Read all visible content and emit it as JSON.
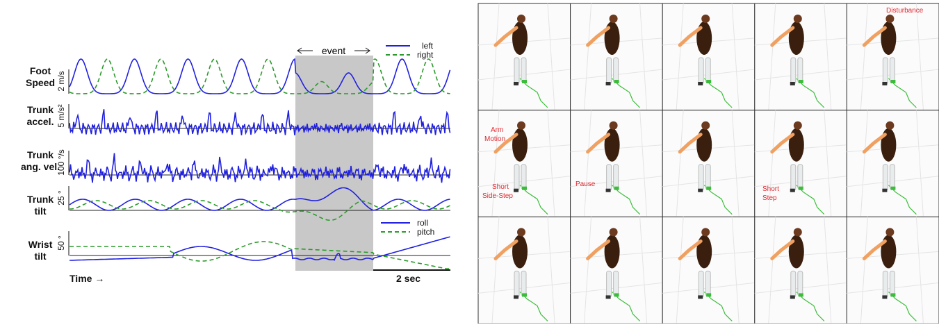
{
  "plot": {
    "rows": [
      {
        "label": [
          "Foot",
          "Speed"
        ],
        "unit": "2 m/s"
      },
      {
        "label": [
          "Trunk",
          "accel."
        ],
        "unit": "5 m/s²"
      },
      {
        "label": [
          "Trunk",
          "ang. vel."
        ],
        "unit": "100 °/s"
      },
      {
        "label": [
          "Trunk",
          "tilt"
        ],
        "unit": "25 °"
      },
      {
        "label": [
          "Wrist",
          "tilt"
        ],
        "unit": "50 °"
      }
    ],
    "event": "event",
    "legend_top": [
      "left",
      "right"
    ],
    "legend_bottom": [
      "roll",
      "pitch"
    ],
    "time_label": "Time →",
    "scale_bar": "2 sec"
  },
  "frames": {
    "annotations": [
      "Disturbance",
      "Arm",
      "Motion",
      "Short",
      "Side-Step",
      "Pause",
      "Short",
      "Step"
    ]
  }
}
